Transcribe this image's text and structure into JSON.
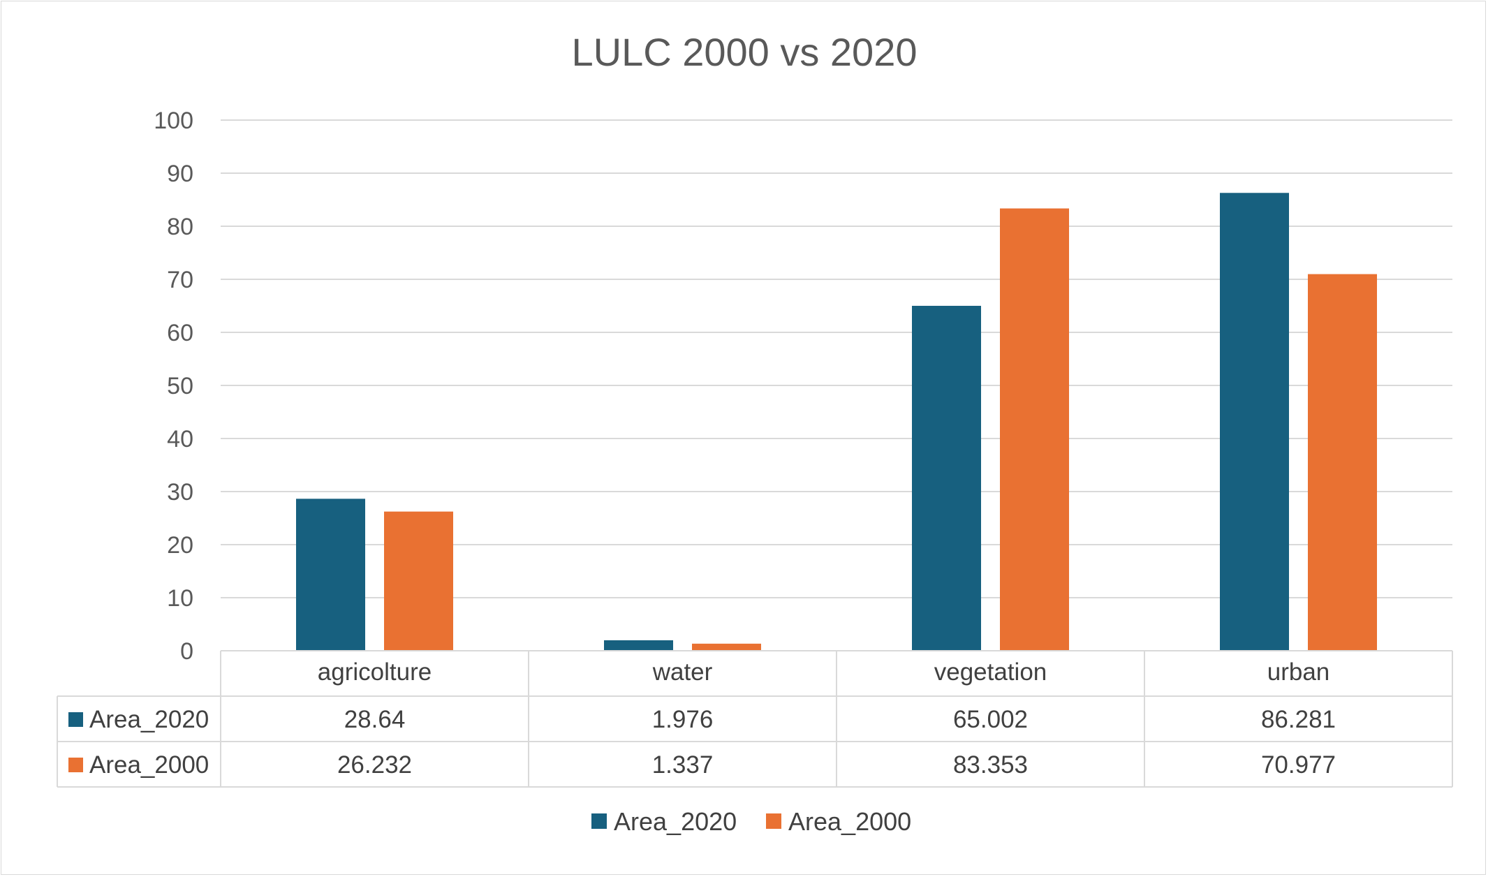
{
  "chart_data": {
    "type": "bar",
    "title": "LULC 2000 vs 2020",
    "xlabel": "",
    "ylabel": "",
    "categories": [
      "agricolture",
      "water",
      "vegetation",
      "urban"
    ],
    "series": [
      {
        "name": "Area_2020",
        "color": "#17607f",
        "values": [
          28.64,
          1.976,
          65.002,
          86.281
        ],
        "labels": [
          "28.64",
          "1.976",
          "65.002",
          "86.281"
        ]
      },
      {
        "name": "Area_2000",
        "color": "#e97132",
        "values": [
          26.232,
          1.337,
          83.353,
          70.977
        ],
        "labels": [
          "26.232",
          "1.337",
          "83.353",
          "70.977"
        ]
      }
    ],
    "ylim": [
      0,
      100
    ],
    "yticks": [
      0,
      10,
      20,
      30,
      40,
      50,
      60,
      70,
      80,
      90,
      100
    ],
    "grid": true,
    "data_table": true,
    "legend_position": "bottom"
  }
}
